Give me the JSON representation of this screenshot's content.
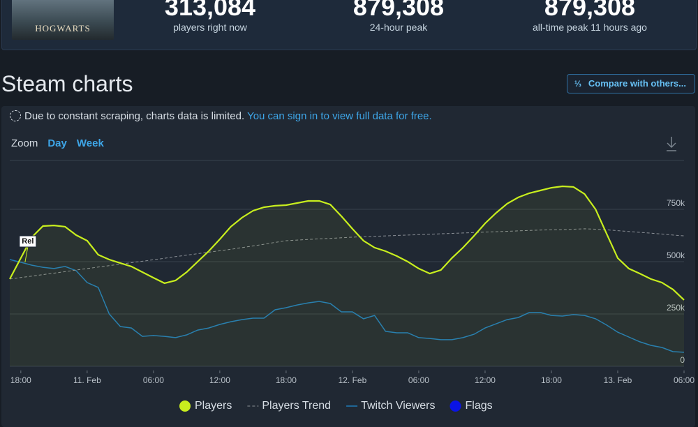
{
  "header": {
    "logo": "HOGWARTS",
    "stats": [
      {
        "value": "313,084",
        "label": "players right now"
      },
      {
        "value": "879,308",
        "label": "24-hour peak"
      },
      {
        "value": "879,308",
        "label": "all-time peak 11 hours ago"
      }
    ]
  },
  "section": {
    "title": "Steam charts",
    "compare_button": "Compare with others..."
  },
  "notice": {
    "text": "Due to constant scraping, charts data is limited.",
    "link": "You can sign in to view full data for free."
  },
  "zoom": {
    "label": "Zoom",
    "options": [
      "Day",
      "Week"
    ]
  },
  "chart_data": {
    "type": "line",
    "categories": [
      null,
      "18:00",
      null,
      null,
      null,
      null,
      null,
      "11. Feb",
      null,
      null,
      null,
      null,
      null,
      "06:00",
      null,
      null,
      null,
      null,
      null,
      "12:00",
      null,
      null,
      null,
      null,
      null,
      "18:00",
      null,
      null,
      null,
      null,
      null,
      "12. Feb",
      null,
      null,
      null,
      null,
      null,
      "06:00",
      null,
      null,
      null,
      null,
      null,
      "12:00",
      null,
      null,
      null,
      null,
      null,
      "18:00",
      null,
      null,
      null,
      null,
      null,
      "13. Feb",
      null,
      null,
      null,
      null,
      null,
      "06:00"
    ],
    "series": [
      {
        "name": "Players",
        "color": "#c8ee1e",
        "area": true,
        "values": [
          417000,
          517000,
          617000,
          670000,
          673000,
          667000,
          627000,
          600000,
          533000,
          510000,
          493000,
          477000,
          450000,
          423000,
          397000,
          410000,
          450000,
          500000,
          550000,
          607000,
          667000,
          710000,
          743000,
          760000,
          767000,
          770000,
          780000,
          790000,
          790000,
          773000,
          717000,
          657000,
          600000,
          567000,
          550000,
          527000,
          500000,
          467000,
          443000,
          460000,
          517000,
          567000,
          623000,
          683000,
          733000,
          777000,
          807000,
          827000,
          840000,
          853000,
          860000,
          857000,
          823000,
          750000,
          633000,
          517000,
          467000,
          443000,
          417000,
          400000,
          367000,
          317000
        ]
      },
      {
        "name": "Players Trend",
        "color": "#8a8f96",
        "dashed": true,
        "values": [
          417000,
          424000,
          431000,
          438000,
          445000,
          452000,
          460000,
          467000,
          474000,
          481000,
          488000,
          495000,
          502000,
          509000,
          516000,
          524000,
          531000,
          538000,
          545000,
          552000,
          559000,
          567000,
          575000,
          583000,
          592000,
          600000,
          603000,
          606000,
          609000,
          611000,
          614000,
          617000,
          619000,
          621000,
          623000,
          625000,
          627000,
          629000,
          631000,
          633000,
          635000,
          637000,
          639000,
          641000,
          643000,
          645000,
          647000,
          649000,
          651000,
          652000,
          653000,
          655000,
          657000,
          655000,
          652000,
          648000,
          644000,
          640000,
          636000,
          632000,
          627000,
          623000
        ]
      },
      {
        "name": "Twitch Viewers",
        "color": "#1f7ab8",
        "values": [
          510000,
          497000,
          483000,
          473000,
          467000,
          477000,
          457000,
          400000,
          377000,
          250000,
          190000,
          183000,
          143000,
          147000,
          143000,
          137000,
          150000,
          173000,
          183000,
          200000,
          213000,
          223000,
          230000,
          230000,
          270000,
          280000,
          293000,
          303000,
          310000,
          300000,
          260000,
          260000,
          227000,
          243000,
          167000,
          160000,
          160000,
          137000,
          133000,
          127000,
          127000,
          137000,
          153000,
          183000,
          203000,
          223000,
          233000,
          257000,
          257000,
          243000,
          240000,
          247000,
          243000,
          227000,
          197000,
          163000,
          140000,
          117000,
          100000,
          90000,
          70000,
          67000
        ]
      }
    ],
    "flags": {
      "name": "Flags",
      "color": "#0a14e6"
    },
    "annotation": "Rel",
    "ylim": [
      0,
      1000000
    ],
    "yticks": [
      0,
      {
        "value": 250000,
        "label": "250k"
      },
      {
        "value": 500000,
        "label": "500k"
      },
      {
        "value": 750000,
        "label": "750k"
      }
    ],
    "grid": true
  }
}
